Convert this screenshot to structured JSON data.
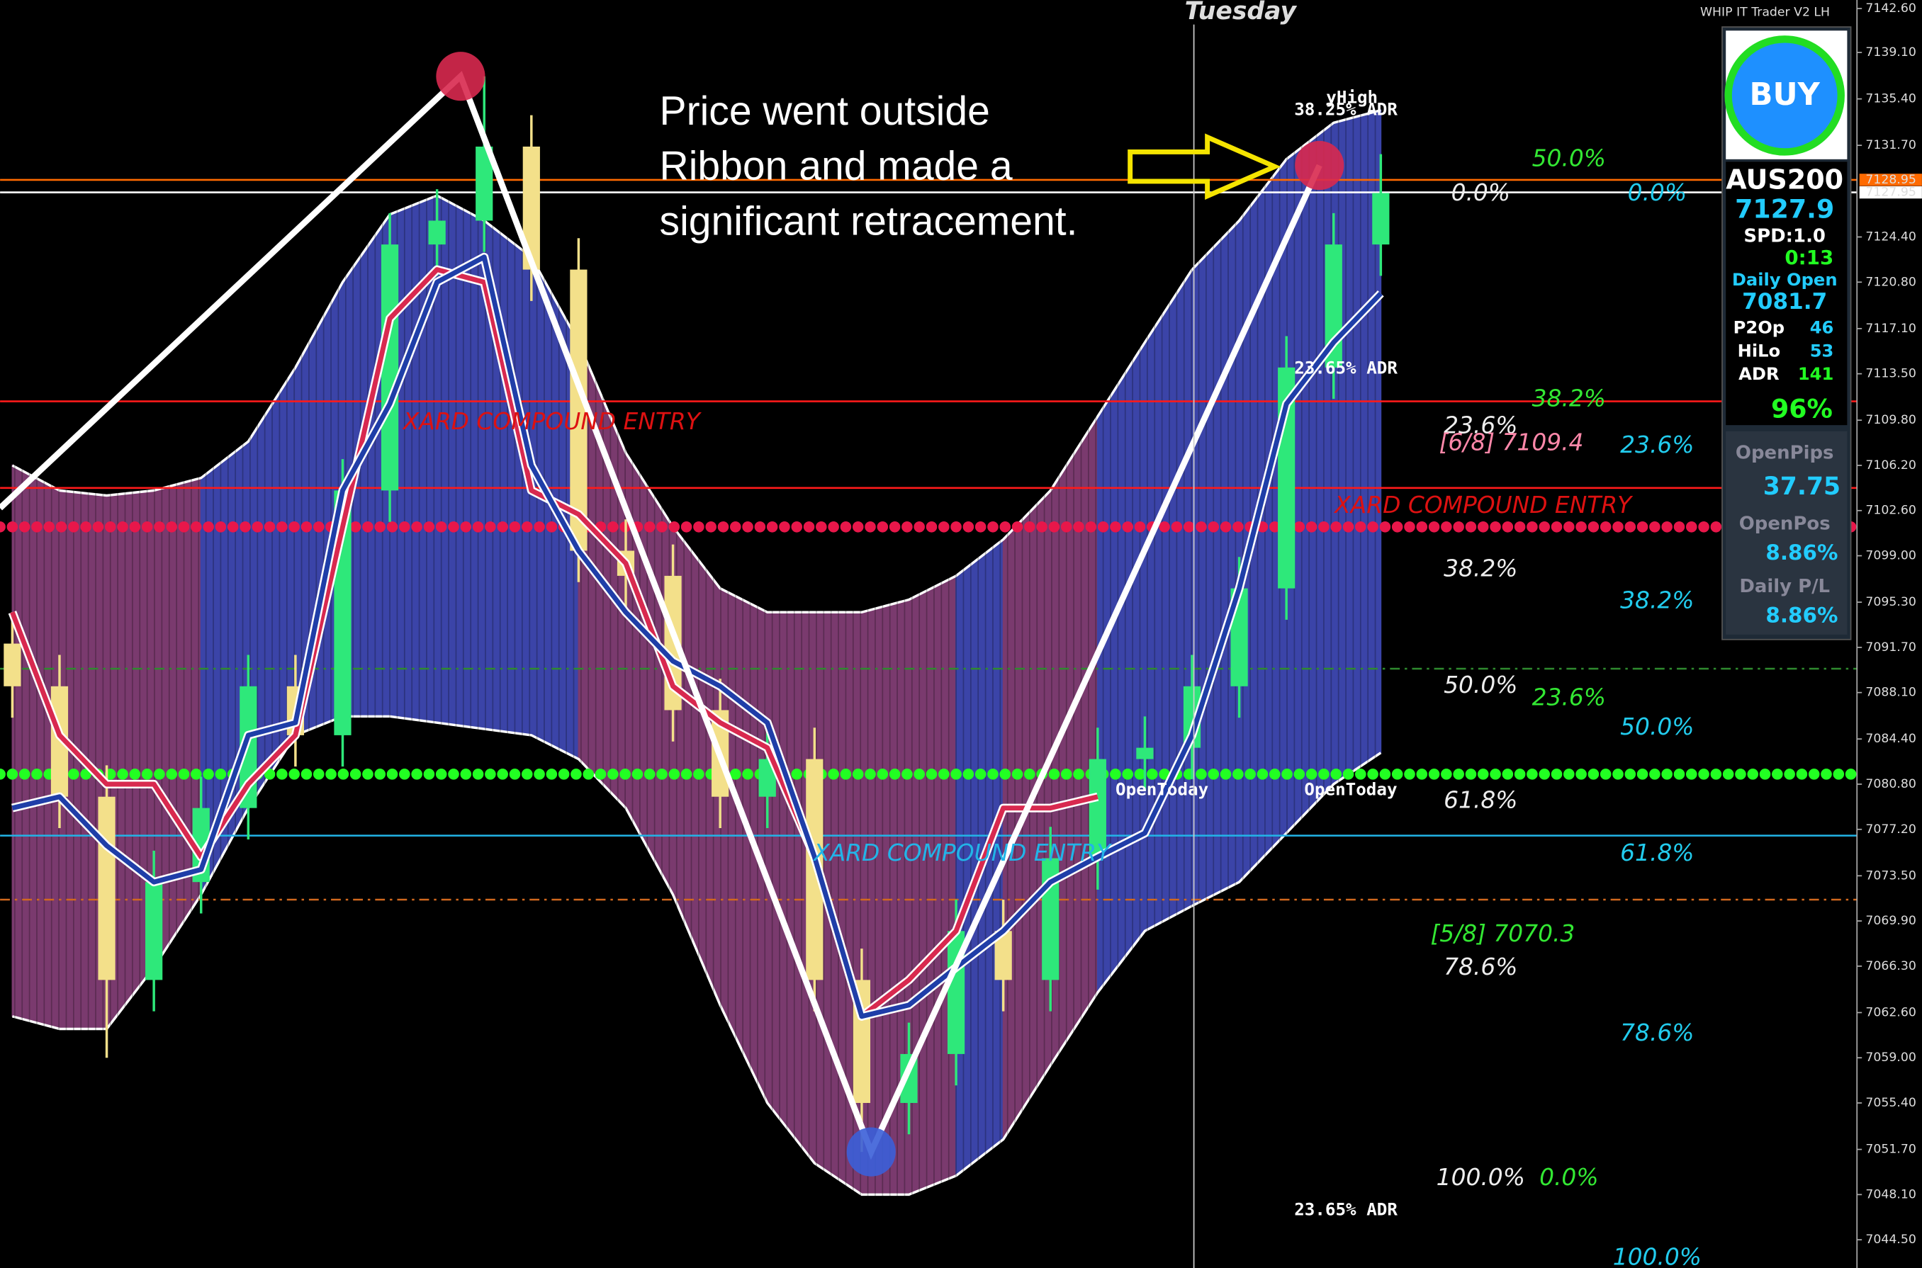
{
  "chart_data": {
    "type": "candlestick",
    "title": "Tuesday",
    "platform_label": "WHIP IT Trader V2 LH",
    "annotation": [
      "Price went outside",
      "Ribbon and made a",
      "significant retracement."
    ],
    "open": [
      7092.0,
      7088.6,
      7079.8,
      7065.2,
      7073.0,
      7078.9,
      7088.6,
      7084.7,
      7104.2,
      7123.8,
      7125.7,
      7131.6,
      7121.8,
      7099.4,
      7097.4,
      7086.7,
      7079.8,
      7082.8,
      7065.2,
      7055.4,
      7059.3,
      7069.1,
      7065.2,
      7074.9,
      7082.8,
      7083.7,
      7088.6,
      7096.4,
      7114.0,
      7123.8
    ],
    "high": [
      7094.5,
      7091.1,
      7082.3,
      7075.5,
      7081.4,
      7091.1,
      7091.1,
      7106.7,
      7126.3,
      7128.2,
      7137.2,
      7134.1,
      7124.3,
      7101.9,
      7099.9,
      7089.2,
      7085.3,
      7085.3,
      7067.7,
      7061.8,
      7071.6,
      7071.6,
      7077.4,
      7085.3,
      7086.2,
      7091.1,
      7098.9,
      7116.5,
      7126.3,
      7131.0
    ],
    "low": [
      7086.1,
      7077.3,
      7059.0,
      7062.7,
      7070.5,
      7076.4,
      7082.2,
      7082.2,
      7101.7,
      7121.3,
      7123.2,
      7119.3,
      7096.9,
      7094.9,
      7084.2,
      7077.3,
      7077.3,
      7062.7,
      7051.5,
      7052.9,
      7056.8,
      7062.7,
      7062.7,
      7072.4,
      7080.3,
      7081.2,
      7086.1,
      7093.9,
      7111.5,
      7121.3
    ],
    "close": [
      7088.6,
      7079.8,
      7065.2,
      7073.0,
      7078.9,
      7088.6,
      7084.7,
      7104.2,
      7123.8,
      7125.7,
      7131.6,
      7121.8,
      7099.4,
      7097.4,
      7086.7,
      7079.8,
      7082.8,
      7065.2,
      7055.4,
      7059.3,
      7069.1,
      7065.2,
      7074.9,
      7082.8,
      7083.7,
      7088.6,
      7096.4,
      7114.0,
      7123.8,
      7127.9
    ],
    "up_color": "#2ee87a",
    "down_color": "#f3e08a",
    "ribbon_upper": [
      7106.2,
      7104.2,
      7103.8,
      7104.2,
      7105.2,
      7108.1,
      7114.0,
      7120.8,
      7126.2,
      7127.7,
      7125.7,
      7122.8,
      7116.0,
      7107.2,
      7101.3,
      7096.4,
      7094.5,
      7094.5,
      7094.5,
      7095.5,
      7097.4,
      7100.3,
      7104.2,
      7110.1,
      7116.0,
      7121.8,
      7125.7,
      7130.6,
      7133.5,
      7134.5
    ],
    "ribbon_lower": [
      7062.3,
      7061.3,
      7061.3,
      7066.2,
      7072.0,
      7078.9,
      7084.7,
      7086.2,
      7086.2,
      7085.7,
      7085.2,
      7084.7,
      7082.8,
      7078.9,
      7072.0,
      7063.2,
      7055.4,
      7050.6,
      7048.1,
      7048.1,
      7049.6,
      7052.5,
      7058.4,
      7064.2,
      7069.1,
      7071.1,
      7073.0,
      7076.9,
      7080.8,
      7083.3
    ],
    "red_line": [
      7094.5,
      7084.7,
      7080.8,
      7080.8,
      7075.0,
      7080.8,
      7084.7,
      7101.3,
      7117.9,
      7121.8,
      7120.8,
      7104.2,
      7102.3,
      7098.4,
      7088.6,
      7085.7,
      7083.7,
      7075.0,
      7062.3,
      7065.2,
      7069.1,
      7078.9,
      7078.9,
      7079.8,
      null,
      null,
      null,
      null,
      null,
      null
    ],
    "blue_line": [
      7078.9,
      7079.8,
      7075.9,
      7073.0,
      7074.0,
      7084.7,
      7085.7,
      7104.2,
      7111.1,
      7120.8,
      7122.8,
      7106.2,
      7099.4,
      7094.5,
      7090.6,
      7088.6,
      7085.7,
      7075.0,
      7062.3,
      7063.2,
      7066.2,
      7069.1,
      7073.0,
      7075.0,
      7076.9,
      7084.7,
      7096.4,
      7111.1,
      7116.0,
      7119.9
    ],
    "zigzag_x": [
      -0.26,
      9.5,
      18.2,
      27.7
    ],
    "zigzag": [
      7102.8,
      7137.2,
      7051.5,
      7130.1
    ],
    "levels": [
      {
        "value": 7128.95,
        "color": "#ff6a00",
        "style": "solid"
      },
      {
        "value": 7127.95,
        "color": "#ffffff",
        "style": "solid"
      },
      {
        "value": 7101.3,
        "color": "#e8174a",
        "style": "dots"
      },
      {
        "value": 7111.3,
        "color": "#ff1a1a",
        "style": "solid"
      },
      {
        "value": 7104.4,
        "color": "#ff1a1a",
        "style": "solid"
      },
      {
        "value": 7090.0,
        "color": "#2e8b2e",
        "style": "dashdot"
      },
      {
        "value": 7081.6,
        "color": "#22ff22",
        "style": "dots"
      },
      {
        "value": 7076.7,
        "color": "#22b4e8",
        "style": "solid"
      },
      {
        "value": 7071.6,
        "color": "#d2691e",
        "style": "dashdot"
      }
    ],
    "ylim": [
      7042.25,
      7143.28
    ],
    "yticks": [
      {
        "value": 7142.6,
        "label": "7142.60"
      },
      {
        "value": 7139.1,
        "label": "7139.10"
      },
      {
        "value": 7135.4,
        "label": "7135.40"
      },
      {
        "value": 7131.7,
        "label": "7131.70"
      },
      {
        "value": 7124.4,
        "label": "7124.40"
      },
      {
        "value": 7120.8,
        "label": "7120.80"
      },
      {
        "value": 7117.1,
        "label": "7117.10"
      },
      {
        "value": 7113.5,
        "label": "7113.50"
      },
      {
        "value": 7109.8,
        "label": "7109.80"
      },
      {
        "value": 7106.2,
        "label": "7106.20"
      },
      {
        "value": 7102.6,
        "label": "7102.60"
      },
      {
        "value": 7099,
        "label": "7099.00"
      },
      {
        "value": 7095.3,
        "label": "7095.30"
      },
      {
        "value": 7091.7,
        "label": "7091.70"
      },
      {
        "value": 7088.1,
        "label": "7088.10"
      },
      {
        "value": 7084.4,
        "label": "7084.40"
      },
      {
        "value": 7080.8,
        "label": "7080.80"
      },
      {
        "value": 7077.2,
        "label": "7077.20"
      },
      {
        "value": 7073.5,
        "label": "7073.50"
      },
      {
        "value": 7069.9,
        "label": "7069.90"
      },
      {
        "value": 7066.3,
        "label": "7066.30"
      },
      {
        "value": 7062.6,
        "label": "7062.60"
      },
      {
        "value": 7059,
        "label": "7059.00"
      },
      {
        "value": 7055.4,
        "label": "7055.40"
      },
      {
        "value": 7051.7,
        "label": "7051.70"
      },
      {
        "value": 7048.1,
        "label": "7048.10"
      },
      {
        "value": 7044.5,
        "label": "7044.50"
      }
    ],
    "price_tags": [
      {
        "value": 7128.95,
        "label": "7128.95",
        "color": "#ff6a00"
      },
      {
        "value": 7127.95,
        "label": "7127.95",
        "color": "#ffffff"
      }
    ],
    "fib_white": [
      "0.0%",
      "23.6%",
      "38.2%",
      "50.0%",
      "61.8%",
      "78.6%",
      "100.0%"
    ],
    "fib_green": [
      "50.0%",
      "38.2%",
      "23.6%",
      "0.0%"
    ],
    "fib_cyan": [
      "0.0%",
      "23.6%",
      "38.2%",
      "50.0%",
      "61.8%",
      "78.6%",
      "100.0%"
    ],
    "adr_labels": [
      "38.25% ADR",
      "23.65% ADR",
      "23.65% ADR"
    ],
    "y_high_label": "yHigh",
    "murrey": [
      "[6/8] 7109.4",
      "[5/8] 7070.3"
    ],
    "xard": [
      "XARD COMPOUND ENTRY",
      "XARD COMPOUND ENTRY",
      "XARD COMPOUND ENTRY"
    ],
    "open_today": [
      "OpenToday",
      "OpenToday"
    ]
  },
  "panel": {
    "button": "BUY",
    "symbol": "AUS200",
    "price": "7127.9",
    "spread": "SPD:1.0",
    "timer": "0:13",
    "daily_open_label": "Daily Open",
    "daily_open": "7081.7",
    "rows": [
      [
        "P2Op",
        "46"
      ],
      [
        "HiLo",
        "53"
      ],
      [
        "ADR",
        "141"
      ]
    ],
    "percent": "96%",
    "open_pips_label": "OpenPips",
    "open_pips": "37.75",
    "open_pos_label": "OpenPos",
    "open_pos": "8.86%",
    "daily_pl_label": "Daily P/L",
    "daily_pl": "8.86%"
  }
}
